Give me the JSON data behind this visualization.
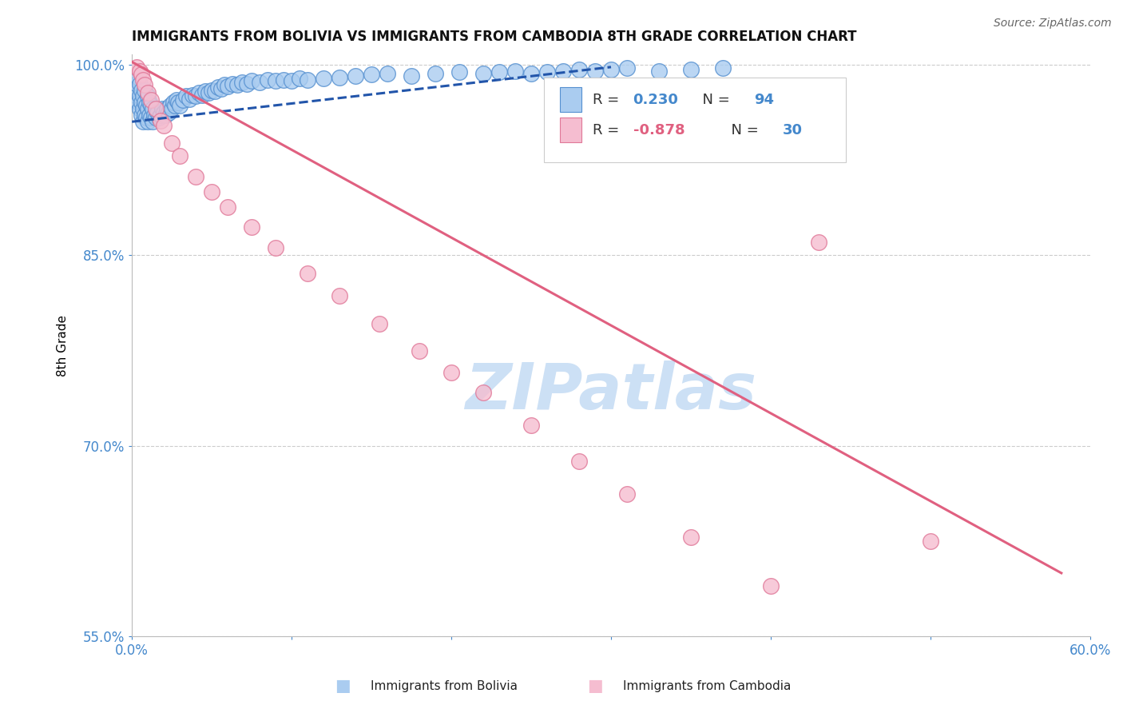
{
  "title": "IMMIGRANTS FROM BOLIVIA VS IMMIGRANTS FROM CAMBODIA 8TH GRADE CORRELATION CHART",
  "source": "Source: ZipAtlas.com",
  "ylabel": "8th Grade",
  "bolivia_R": 0.23,
  "bolivia_N": 94,
  "cambodia_R": -0.878,
  "cambodia_N": 30,
  "bolivia_color": "#aaccf0",
  "bolivia_edge": "#5590d0",
  "cambodia_color": "#f5bdd0",
  "cambodia_edge": "#e07898",
  "trend_bolivia_color": "#2255aa",
  "trend_cambodia_color": "#e06080",
  "xmin": 0.0,
  "xmax": 0.6,
  "ymin": 0.595,
  "ymax": 1.008,
  "yticks": [
    1.0,
    0.85,
    0.7,
    0.55
  ],
  "ytick_labels": [
    "100.0%",
    "85.0%",
    "70.0%",
    "55.0%"
  ],
  "xticks": [
    0.0,
    0.1,
    0.2,
    0.3,
    0.4,
    0.5,
    0.6
  ],
  "xtick_labels": [
    "0.0%",
    "",
    "",
    "",
    "",
    "",
    "60.0%"
  ],
  "watermark": "ZIPatlas",
  "watermark_color": "#cce0f5",
  "tick_color": "#4488cc",
  "background_color": "#ffffff",
  "grid_color": "#cccccc",
  "bolivia_x": [
    0.002,
    0.003,
    0.003,
    0.004,
    0.004,
    0.005,
    0.005,
    0.005,
    0.006,
    0.006,
    0.006,
    0.007,
    0.007,
    0.007,
    0.008,
    0.008,
    0.008,
    0.009,
    0.009,
    0.01,
    0.01,
    0.01,
    0.011,
    0.011,
    0.012,
    0.012,
    0.013,
    0.013,
    0.014,
    0.015,
    0.015,
    0.016,
    0.017,
    0.018,
    0.019,
    0.02,
    0.021,
    0.022,
    0.023,
    0.024,
    0.025,
    0.026,
    0.027,
    0.028,
    0.029,
    0.03,
    0.032,
    0.034,
    0.036,
    0.038,
    0.04,
    0.042,
    0.044,
    0.046,
    0.048,
    0.05,
    0.052,
    0.054,
    0.056,
    0.058,
    0.06,
    0.063,
    0.066,
    0.069,
    0.072,
    0.075,
    0.08,
    0.085,
    0.09,
    0.095,
    0.1,
    0.105,
    0.11,
    0.12,
    0.13,
    0.14,
    0.15,
    0.16,
    0.175,
    0.19,
    0.205,
    0.22,
    0.23,
    0.24,
    0.25,
    0.26,
    0.27,
    0.28,
    0.29,
    0.3,
    0.31,
    0.33,
    0.35,
    0.37
  ],
  "bolivia_y": [
    0.98,
    0.975,
    0.985,
    0.97,
    0.99,
    0.965,
    0.975,
    0.985,
    0.96,
    0.97,
    0.98,
    0.955,
    0.965,
    0.975,
    0.96,
    0.97,
    0.98,
    0.958,
    0.968,
    0.955,
    0.965,
    0.975,
    0.96,
    0.97,
    0.958,
    0.968,
    0.955,
    0.965,
    0.96,
    0.958,
    0.965,
    0.962,
    0.958,
    0.96,
    0.965,
    0.962,
    0.96,
    0.965,
    0.962,
    0.968,
    0.965,
    0.97,
    0.968,
    0.972,
    0.97,
    0.968,
    0.972,
    0.975,
    0.973,
    0.976,
    0.975,
    0.978,
    0.976,
    0.979,
    0.978,
    0.98,
    0.979,
    0.982,
    0.981,
    0.984,
    0.983,
    0.985,
    0.984,
    0.986,
    0.985,
    0.987,
    0.986,
    0.988,
    0.987,
    0.988,
    0.987,
    0.989,
    0.988,
    0.989,
    0.99,
    0.991,
    0.992,
    0.993,
    0.991,
    0.993,
    0.994,
    0.993,
    0.994,
    0.995,
    0.993,
    0.994,
    0.995,
    0.996,
    0.995,
    0.996,
    0.997,
    0.995,
    0.996,
    0.997
  ],
  "cambodia_x": [
    0.003,
    0.005,
    0.006,
    0.007,
    0.008,
    0.01,
    0.012,
    0.015,
    0.018,
    0.02,
    0.025,
    0.03,
    0.04,
    0.05,
    0.06,
    0.075,
    0.09,
    0.11,
    0.13,
    0.155,
    0.18,
    0.2,
    0.22,
    0.25,
    0.28,
    0.31,
    0.35,
    0.4,
    0.43,
    0.5
  ],
  "cambodia_y": [
    0.998,
    0.995,
    0.992,
    0.988,
    0.984,
    0.978,
    0.972,
    0.965,
    0.956,
    0.952,
    0.938,
    0.928,
    0.912,
    0.9,
    0.888,
    0.872,
    0.856,
    0.836,
    0.818,
    0.796,
    0.775,
    0.758,
    0.742,
    0.716,
    0.688,
    0.662,
    0.628,
    0.59,
    0.86,
    0.625
  ],
  "bolivia_trend_x": [
    0.0,
    0.3
  ],
  "bolivia_trend_y": [
    0.955,
    0.998
  ],
  "cambodia_trend_x": [
    0.0,
    0.582
  ],
  "cambodia_trend_y": [
    1.002,
    0.6
  ]
}
